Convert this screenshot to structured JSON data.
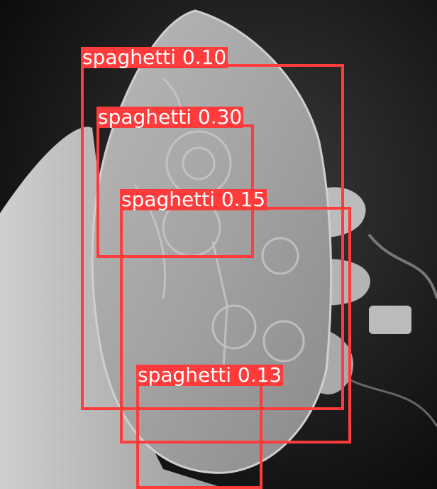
{
  "accent_color": "#ff3b3b",
  "detections": [
    {
      "label": "spaghetti",
      "score": "0.10",
      "text": "spaghetti 0.10"
    },
    {
      "label": "spaghetti",
      "score": "0.30",
      "text": "spaghetti 0.30"
    },
    {
      "label": "spaghetti",
      "score": "0.15",
      "text": "spaghetti 0.15"
    },
    {
      "label": "spaghetti",
      "score": "0.13",
      "text": "spaghetti 0.13"
    }
  ]
}
